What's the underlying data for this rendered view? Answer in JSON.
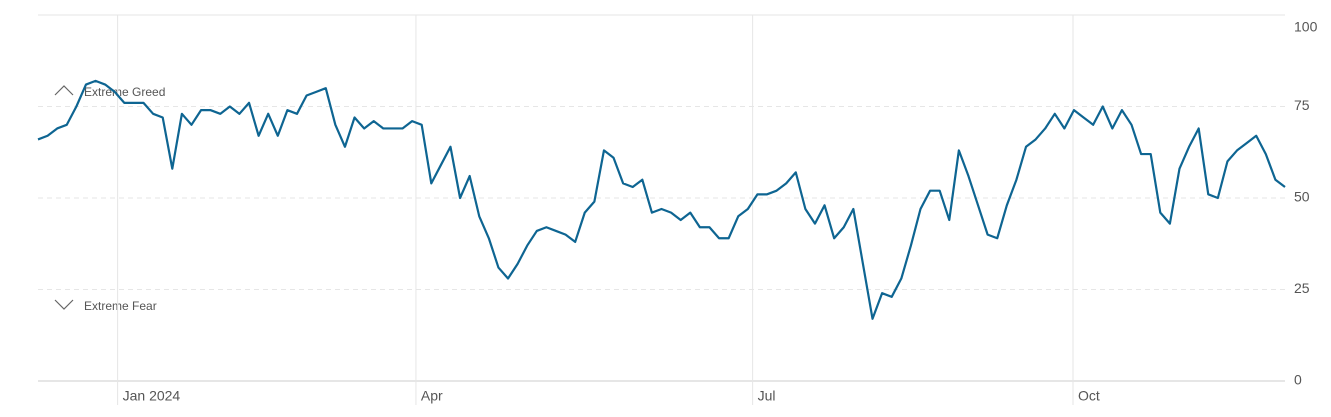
{
  "chart_data": {
    "type": "line",
    "annotations": [
      "Extreme Greed",
      "Extreme Fear"
    ],
    "series": [
      {
        "color": "#0e6592",
        "values": [
          66,
          67,
          69,
          70,
          75,
          81,
          82,
          81,
          79,
          76,
          76,
          76,
          73,
          72,
          58,
          73,
          70,
          74,
          74,
          73,
          75,
          73,
          76,
          67,
          73,
          67,
          74,
          73,
          78,
          79,
          80,
          70,
          64,
          72,
          69,
          71,
          69,
          69,
          69,
          71,
          70,
          54,
          59,
          64,
          50,
          56,
          45,
          39,
          31,
          28,
          32,
          37,
          41,
          42,
          41,
          40,
          38,
          46,
          49,
          63,
          61,
          54,
          53,
          55,
          46,
          47,
          46,
          44,
          46,
          42,
          42,
          39,
          39,
          45,
          47,
          51,
          51,
          52,
          54,
          57,
          47,
          43,
          48,
          39,
          42,
          47,
          32,
          17,
          24,
          23,
          28,
          37,
          47,
          52,
          52,
          44,
          63,
          56,
          48,
          40,
          39,
          48,
          55,
          64,
          66,
          69,
          73,
          69,
          74,
          72,
          70,
          75,
          69,
          74,
          70,
          62,
          62,
          46,
          43,
          58,
          64,
          69,
          51,
          50,
          60,
          63,
          65,
          67,
          62,
          55,
          53
        ]
      }
    ],
    "xlim": [
      0,
      130
    ],
    "xticks": [
      {
        "value": 8.3,
        "label": "Jan 2024"
      },
      {
        "value": 39.4,
        "label": "Apr"
      },
      {
        "value": 74.5,
        "label": "Jul"
      },
      {
        "value": 107.9,
        "label": "Oct"
      }
    ],
    "ylim": [
      0,
      100
    ],
    "yticks": [
      0,
      25,
      50,
      75,
      100
    ],
    "grid": true
  }
}
